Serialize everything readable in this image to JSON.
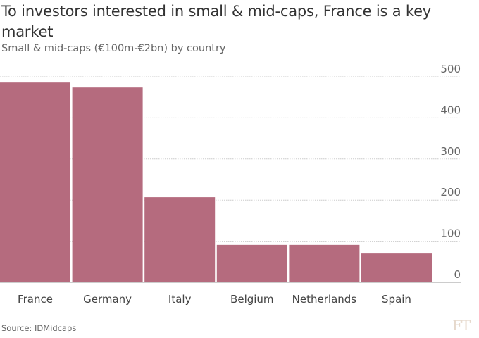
{
  "chart_data": {
    "type": "bar",
    "title": "To investors interested in small & mid-caps, France is a key market",
    "subtitle": "Small & mid-caps (€100m-€2bn) by country",
    "categories": [
      "France",
      "Germany",
      "Italy",
      "Belgium",
      "Netherlands",
      "Spain"
    ],
    "values": [
      486,
      474,
      207,
      91,
      91,
      70
    ],
    "xlabel": "",
    "ylabel": "",
    "ylim": [
      0,
      500
    ],
    "yticks": [
      "0",
      "100",
      "200",
      "300",
      "400",
      "500"
    ],
    "ytick_values": [
      0,
      100,
      200,
      300,
      400,
      500
    ],
    "grid": true,
    "bar_color": "#b56b7e",
    "source": "Source: IDMidcaps"
  },
  "logo_text": "FT"
}
